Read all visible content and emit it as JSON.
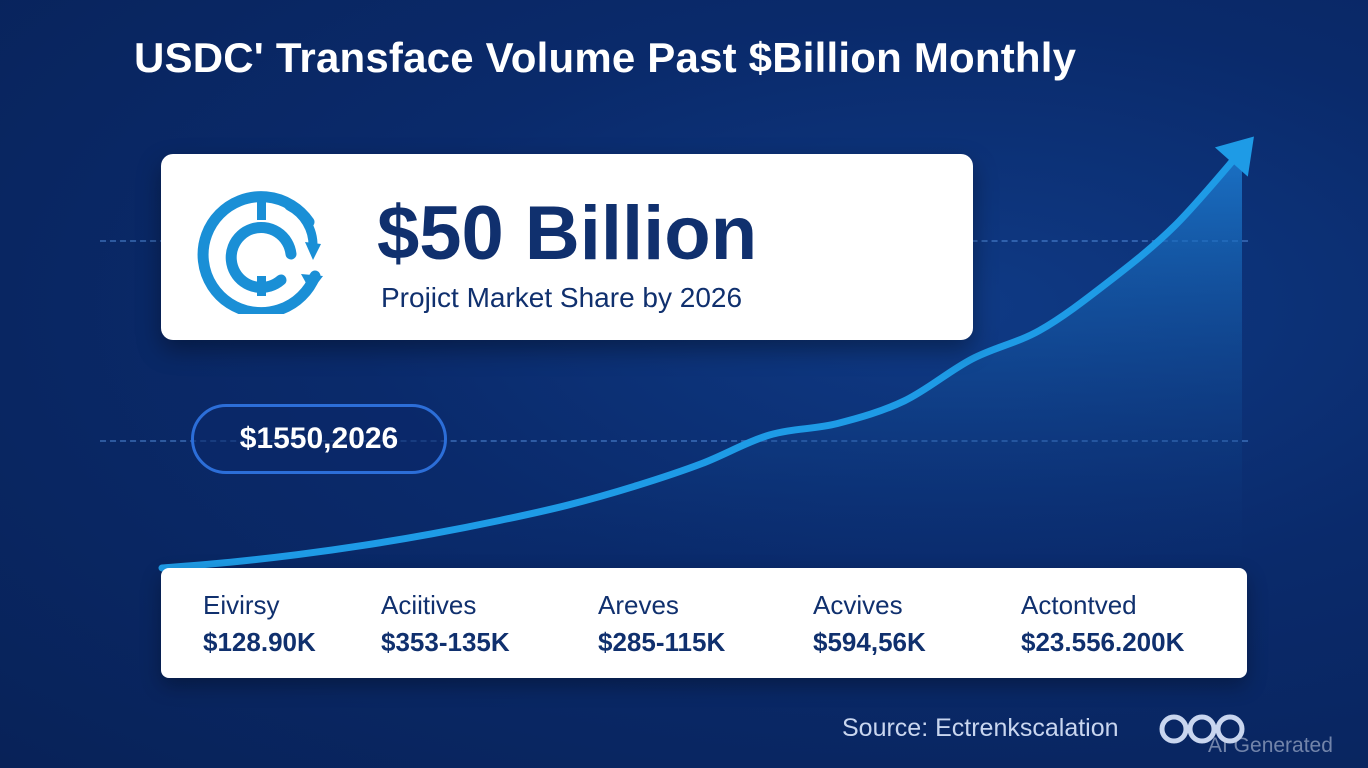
{
  "title": "USDC' Transface Volume Past $Billion Monthly",
  "hero": {
    "value": "$50 Billion",
    "subtitle": "Projict Market Share by 2026",
    "icon": "circular-currency-arrow-icon",
    "icon_color": "#1a8fd6"
  },
  "pill": {
    "text": "$1550,2026"
  },
  "stats": [
    {
      "label": "Eivirsy",
      "value": "$128.90K"
    },
    {
      "label": "Aciitives",
      "value": "$353-135K"
    },
    {
      "label": "Areves",
      "value": "$285-115K"
    },
    {
      "label": "Acvives",
      "value": "$594,56K"
    },
    {
      "label": "Actontved",
      "value": "$23.556.200K"
    }
  ],
  "source": "Source: Ectrenkscalation",
  "watermark": "AI Generated",
  "colors": {
    "background": "#0a2a6b",
    "line": "#1e9be6",
    "text_dark": "#10306e",
    "card": "#ffffff"
  },
  "chart_data": {
    "type": "area",
    "title": "USDC' Transface Volume Past $Billion Monthly",
    "x": [
      0,
      1,
      2,
      3,
      4,
      5,
      6,
      7,
      8,
      9,
      10,
      11,
      12,
      13,
      14,
      15,
      16
    ],
    "values": [
      0,
      3,
      7,
      12,
      18,
      25,
      33,
      43,
      55,
      70,
      76,
      88,
      110,
      125,
      150,
      180,
      220
    ],
    "ylim": [
      0,
      220
    ],
    "grid": false,
    "legend": "none",
    "arrow_at_end": true
  }
}
